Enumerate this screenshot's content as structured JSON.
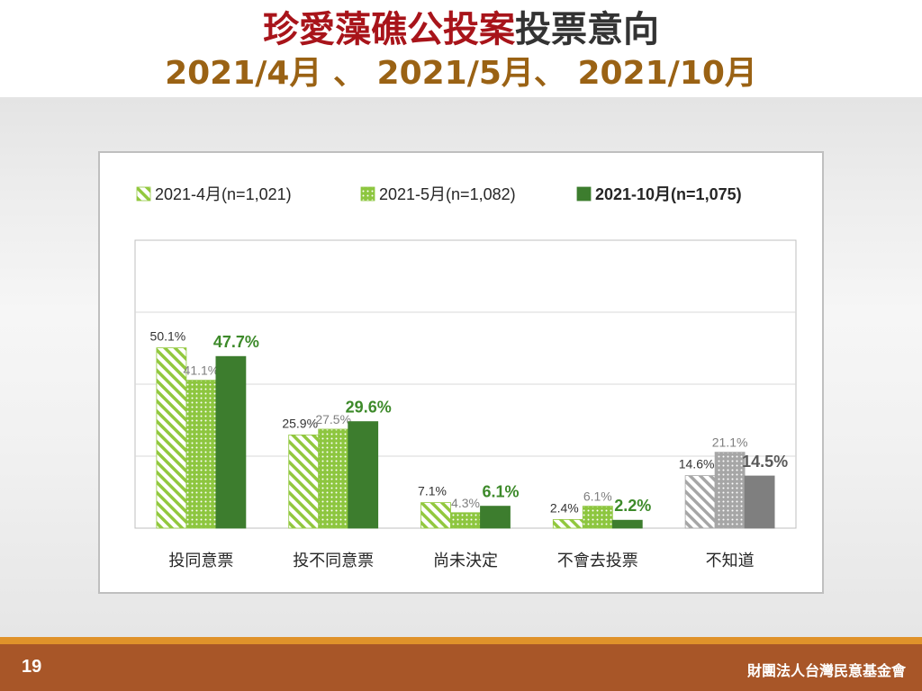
{
  "title": {
    "line1_highlight": "珍愛藻礁公投案",
    "line1_rest": "投票意向",
    "line2": "2021/4月 、 2021/5月、 2021/10月"
  },
  "footer": {
    "page_number": "19",
    "organization": "財團法人台灣民意基金會"
  },
  "colors": {
    "april": "#92c83e",
    "may": "#8dc63f",
    "october": "#3d7d2e",
    "unknown_april": "#a6a6a6",
    "unknown_may": "#a6a6a6",
    "unknown_october": "#7f7f7f",
    "highlight_label": "#3d8a2a"
  },
  "chart_data": {
    "type": "bar",
    "categories": [
      "投同意票",
      "投不同意票",
      "尚未決定",
      "不會去投票",
      "不知道"
    ],
    "series": [
      {
        "name": "2021-4月(n=1,021)",
        "pattern": "diagonal-hatch",
        "values": [
          50.1,
          25.9,
          7.1,
          2.4,
          14.6
        ],
        "labels": [
          "50.1%",
          "25.9%",
          "7.1%",
          "2.4%",
          "14.6%"
        ]
      },
      {
        "name": "2021-5月(n=1,082)",
        "pattern": "dotted",
        "values": [
          41.1,
          27.5,
          4.3,
          6.1,
          21.1
        ],
        "labels": [
          "41.1%",
          "27.5%",
          "4.3%",
          "6.1%",
          "21.1%"
        ]
      },
      {
        "name": "2021-10月(n=1,075)",
        "pattern": "solid",
        "values": [
          47.7,
          29.6,
          6.1,
          2.2,
          14.5
        ],
        "labels": [
          "47.7%",
          "29.6%",
          "6.1%",
          "2.2%",
          "14.5%"
        ]
      }
    ],
    "last_category_gray": true,
    "ylim": [
      0,
      80
    ],
    "y_gridlines": [
      0,
      20,
      40,
      60,
      80
    ],
    "legend": "top",
    "grid": true
  }
}
